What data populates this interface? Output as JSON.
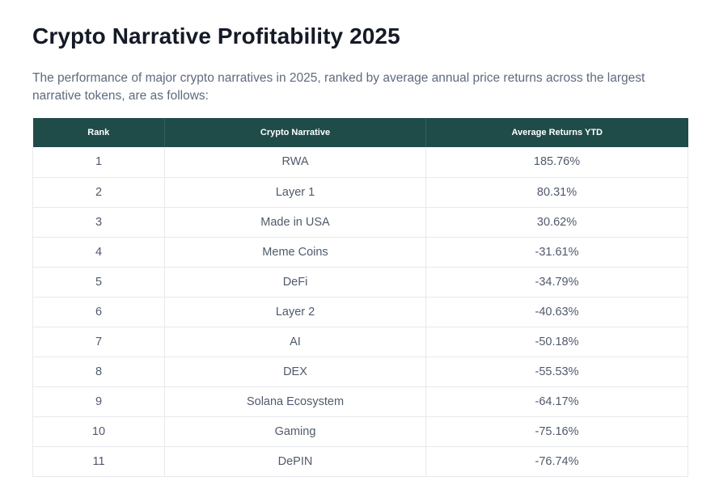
{
  "title": "Crypto Narrative Profitability 2025",
  "intro": "The performance of major crypto narratives in 2025, ranked by average annual price returns across the largest narrative tokens, are as follows:",
  "table": {
    "headers": [
      "Rank",
      "Crypto Narrative",
      "Average Returns YTD"
    ],
    "rows": [
      [
        "1",
        "RWA",
        "185.76%"
      ],
      [
        "2",
        "Layer 1",
        "80.31%"
      ],
      [
        "3",
        "Made in USA",
        "30.62%"
      ],
      [
        "4",
        "Meme Coins",
        "-31.61%"
      ],
      [
        "5",
        "DeFi",
        "-34.79%"
      ],
      [
        "6",
        "Layer 2",
        "-40.63%"
      ],
      [
        "7",
        "AI",
        "-50.18%"
      ],
      [
        "8",
        "DEX",
        "-55.53%"
      ],
      [
        "9",
        "Solana Ecosystem",
        "-64.17%"
      ],
      [
        "10",
        "Gaming",
        "-75.16%"
      ],
      [
        "11",
        "DePIN",
        "-76.74%"
      ]
    ]
  },
  "colors": {
    "header_bg": "#1f4c49",
    "header_text": "#ffffff",
    "body_text": "#4f5a6b",
    "title_text": "#141a26"
  }
}
